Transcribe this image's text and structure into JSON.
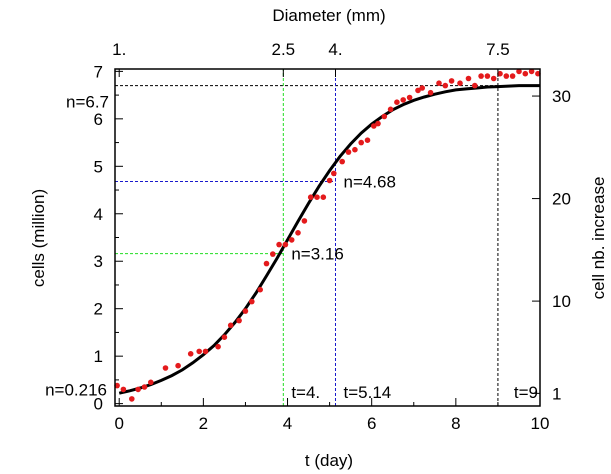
{
  "chart_data": {
    "type": "scatter",
    "title": "",
    "xlabel": "t (day)",
    "ylabel": "cells (million)",
    "x2label": "Diameter (mm)",
    "y2label": "cell nb. increase",
    "xlim": [
      -0.1,
      10
    ],
    "ylim": [
      -0.05,
      7.05
    ],
    "xticks": [
      0,
      2,
      4,
      6,
      8,
      10
    ],
    "yticks": [
      0,
      1,
      2,
      3,
      4,
      5,
      6,
      7
    ],
    "x2ticks": [
      {
        "label": "1.",
        "t": 0
      },
      {
        "label": "2.5",
        "t": 3.9
      },
      {
        "label": "4.",
        "t": 5.14
      },
      {
        "label": "7.5",
        "t": 9
      }
    ],
    "y2ticks": [
      {
        "label": "1",
        "cells": 0.216
      },
      {
        "label": "10",
        "cells": 2.16
      },
      {
        "label": "20",
        "cells": 4.32
      },
      {
        "label": "30",
        "cells": 6.48
      }
    ],
    "grid": false,
    "series": [
      {
        "kind": "points",
        "color": "#e41a1c",
        "x": [
          -0.05,
          0.1,
          0.3,
          0.45,
          0.6,
          0.75,
          1.1,
          1.4,
          1.7,
          1.9,
          2.05,
          2.35,
          2.5,
          2.65,
          2.85,
          3.0,
          3.15,
          3.35,
          3.5,
          3.65,
          3.8,
          3.95,
          4.1,
          4.25,
          4.4,
          4.55,
          4.7,
          4.85,
          5.0,
          5.1,
          5.3,
          5.45,
          5.6,
          5.75,
          5.9,
          6.05,
          6.15,
          6.3,
          6.45,
          6.6,
          6.75,
          6.9,
          7.1,
          7.2,
          7.4,
          7.6,
          7.75,
          7.9,
          8.1,
          8.3,
          8.45,
          8.6,
          8.75,
          8.9,
          9.05,
          9.2,
          9.35,
          9.5,
          9.65,
          9.8,
          9.95
        ],
        "y": [
          0.38,
          0.3,
          0.1,
          0.3,
          0.35,
          0.45,
          0.75,
          0.8,
          1.05,
          1.1,
          1.1,
          1.2,
          1.4,
          1.65,
          1.75,
          1.95,
          2.15,
          2.4,
          2.95,
          3.15,
          3.35,
          3.35,
          3.45,
          3.6,
          3.85,
          4.35,
          4.35,
          4.35,
          4.7,
          4.85,
          5.1,
          5.3,
          5.35,
          5.5,
          5.55,
          5.85,
          5.9,
          6.05,
          6.2,
          6.35,
          6.4,
          6.45,
          6.6,
          6.65,
          6.55,
          6.75,
          6.7,
          6.8,
          6.75,
          6.85,
          6.7,
          6.9,
          6.9,
          6.85,
          6.95,
          6.9,
          6.9,
          7.0,
          6.95,
          7.0,
          6.95
        ]
      },
      {
        "kind": "fit",
        "color": "#000000",
        "model": "logistic",
        "x": [
          0,
          0.25,
          0.5,
          0.75,
          1,
          1.25,
          1.5,
          1.75,
          2,
          2.25,
          2.5,
          2.75,
          3,
          3.25,
          3.5,
          3.75,
          4,
          4.25,
          4.5,
          4.75,
          5,
          5.25,
          5.5,
          5.75,
          6,
          6.25,
          6.5,
          6.75,
          7,
          7.25,
          7.5,
          7.75,
          8,
          8.25,
          8.5,
          8.75,
          9,
          9.25,
          9.5,
          9.75,
          10
        ],
        "y": [
          0.22,
          0.27,
          0.33,
          0.4,
          0.49,
          0.59,
          0.71,
          0.86,
          1.03,
          1.22,
          1.45,
          1.71,
          2.0,
          2.33,
          2.69,
          3.06,
          3.45,
          3.84,
          4.22,
          4.58,
          4.91,
          5.21,
          5.47,
          5.7,
          5.89,
          6.05,
          6.19,
          6.3,
          6.39,
          6.46,
          6.52,
          6.57,
          6.61,
          6.63,
          6.65,
          6.67,
          6.68,
          6.69,
          6.7,
          6.7,
          6.7
        ]
      }
    ],
    "annotations": [
      {
        "text": "n=0.216",
        "color": "#e41a1c",
        "t": null,
        "n": 0.216
      },
      {
        "text": "n=6.7",
        "color": "#000000",
        "t": 9,
        "n": 6.7,
        "t_label": "t=9"
      },
      {
        "text": "n=3.16",
        "color": "#22dd22",
        "t": 3.9,
        "n": 3.16,
        "t_label": "t=4."
      },
      {
        "text": "n=4.68",
        "color": "#1a1acc",
        "t": 5.14,
        "n": 4.68,
        "t_label": "t=5.14"
      }
    ]
  }
}
